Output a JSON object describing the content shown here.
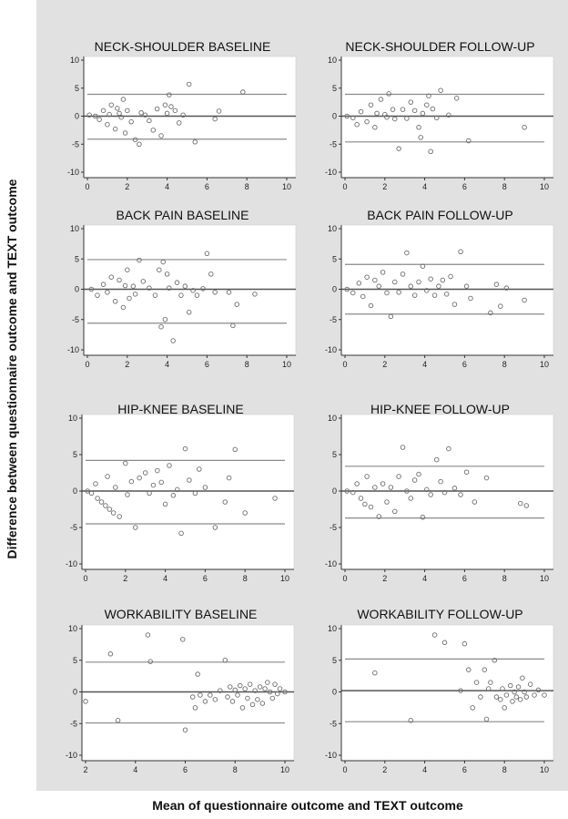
{
  "figure": {
    "ylabel": "Difference between questionnaire outcome and TEXT outcome",
    "xlabel": "Mean of questionnaire outcome and TEXT outcome"
  },
  "chart_data": [
    {
      "type": "scatter",
      "title": "NECK-SHOULDER BASELINE",
      "xlim": [
        0,
        10
      ],
      "ylim": [
        -10,
        10
      ],
      "xticks": [
        "0",
        "2",
        "4",
        "6",
        "8",
        "10"
      ],
      "yticks": [
        "10",
        "5",
        "0",
        "-5",
        "-10"
      ],
      "grid": false,
      "reference_lines": {
        "mean": 0,
        "upper_limit": 3.9,
        "lower_limit": -4.1
      },
      "points": [
        [
          0.1,
          0.2
        ],
        [
          0.4,
          0
        ],
        [
          0.6,
          -0.6
        ],
        [
          0.8,
          1
        ],
        [
          1,
          -1.5
        ],
        [
          1.1,
          0.3
        ],
        [
          1.2,
          2
        ],
        [
          1.4,
          -2.3
        ],
        [
          1.5,
          1.4
        ],
        [
          1.6,
          0.5
        ],
        [
          1.7,
          -0.2
        ],
        [
          1.8,
          3
        ],
        [
          1.9,
          -3
        ],
        [
          2,
          1
        ],
        [
          2.2,
          -1
        ],
        [
          2.4,
          -4.2
        ],
        [
          2.6,
          -5
        ],
        [
          2.7,
          0.6
        ],
        [
          2.9,
          0.2
        ],
        [
          3.1,
          -0.8
        ],
        [
          3.3,
          -2.5
        ],
        [
          3.5,
          1.3
        ],
        [
          3.7,
          -3.5
        ],
        [
          3.9,
          2
        ],
        [
          4,
          0.5
        ],
        [
          4.1,
          3.8
        ],
        [
          4.2,
          1.7
        ],
        [
          4.4,
          1
        ],
        [
          4.6,
          -1.2
        ],
        [
          4.8,
          0.2
        ],
        [
          5.1,
          5.7
        ],
        [
          5.4,
          -4.6
        ],
        [
          6.4,
          -0.5
        ],
        [
          6.6,
          0.9
        ],
        [
          7.8,
          4.3
        ]
      ]
    },
    {
      "type": "scatter",
      "title": "NECK-SHOULDER FOLLOW-UP",
      "xlim": [
        0,
        10
      ],
      "ylim": [
        -10,
        10
      ],
      "xticks": [
        "0",
        "2",
        "4",
        "6",
        "8",
        "10"
      ],
      "yticks": [
        "10",
        "5",
        "0",
        "-5",
        "-10"
      ],
      "grid": false,
      "reference_lines": {
        "mean": 0,
        "upper_limit": 3.9,
        "lower_limit": -4.6
      },
      "points": [
        [
          0.1,
          0
        ],
        [
          0.4,
          -0.3
        ],
        [
          0.6,
          -1.5
        ],
        [
          0.8,
          0.8
        ],
        [
          1.1,
          -1
        ],
        [
          1.3,
          2
        ],
        [
          1.5,
          -2
        ],
        [
          1.6,
          0.5
        ],
        [
          1.8,
          3
        ],
        [
          2,
          0.3
        ],
        [
          2.1,
          -0.2
        ],
        [
          2.2,
          4
        ],
        [
          2.4,
          1.2
        ],
        [
          2.5,
          -0.5
        ],
        [
          2.7,
          -5.8
        ],
        [
          2.9,
          1.2
        ],
        [
          3.1,
          -0.4
        ],
        [
          3.3,
          2.5
        ],
        [
          3.5,
          1
        ],
        [
          3.7,
          -2
        ],
        [
          3.8,
          -3.8
        ],
        [
          3.9,
          0.5
        ],
        [
          4.1,
          2
        ],
        [
          4.2,
          3.6
        ],
        [
          4.3,
          -6.3
        ],
        [
          4.4,
          1.3
        ],
        [
          4.6,
          -0.3
        ],
        [
          4.8,
          4.6
        ],
        [
          5.2,
          0.2
        ],
        [
          5.6,
          3.2
        ],
        [
          6.2,
          -4.4
        ],
        [
          9,
          -2
        ]
      ]
    },
    {
      "type": "scatter",
      "title": "BACK PAIN BASELINE",
      "xlim": [
        0,
        10
      ],
      "ylim": [
        -10,
        10
      ],
      "xticks": [
        "0",
        "2",
        "4",
        "6",
        "8",
        "10"
      ],
      "yticks": [
        "10",
        "5",
        "0",
        "-5",
        "-10"
      ],
      "grid": false,
      "reference_lines": {
        "mean": 0,
        "upper_limit": 4.9,
        "lower_limit": -5.6
      },
      "points": [
        [
          0.2,
          0
        ],
        [
          0.5,
          -1
        ],
        [
          0.8,
          0.8
        ],
        [
          1,
          -0.5
        ],
        [
          1.2,
          2
        ],
        [
          1.4,
          -2
        ],
        [
          1.6,
          1.5
        ],
        [
          1.8,
          -3
        ],
        [
          1.9,
          0.6
        ],
        [
          2,
          3.2
        ],
        [
          2.1,
          -1.5
        ],
        [
          2.3,
          0.5
        ],
        [
          2.4,
          -0.8
        ],
        [
          2.6,
          4.8
        ],
        [
          2.8,
          1.3
        ],
        [
          3.1,
          0.2
        ],
        [
          3.4,
          -1
        ],
        [
          3.6,
          3.2
        ],
        [
          3.7,
          -6.2
        ],
        [
          3.8,
          4.5
        ],
        [
          3.9,
          -5
        ],
        [
          4,
          2.5
        ],
        [
          4.1,
          0.2
        ],
        [
          4.3,
          -8.5
        ],
        [
          4.5,
          1.1
        ],
        [
          4.7,
          -1
        ],
        [
          4.9,
          0.5
        ],
        [
          5.1,
          -3.8
        ],
        [
          5.3,
          -0.2
        ],
        [
          5.5,
          -1
        ],
        [
          5.8,
          0.1
        ],
        [
          6,
          5.9
        ],
        [
          6.2,
          2.5
        ],
        [
          6.4,
          -0.5
        ],
        [
          7.1,
          -0.5
        ],
        [
          7.3,
          -6
        ],
        [
          7.5,
          -2.5
        ],
        [
          8.4,
          -0.8
        ]
      ]
    },
    {
      "type": "scatter",
      "title": "BACK PAIN FOLLOW-UP",
      "xlim": [
        0,
        10
      ],
      "ylim": [
        -10,
        10
      ],
      "xticks": [
        "0",
        "2",
        "4",
        "6",
        "8",
        "10"
      ],
      "yticks": [
        "10",
        "5",
        "0",
        "-5",
        "-10"
      ],
      "grid": false,
      "reference_lines": {
        "mean": 0,
        "upper_limit": 4.1,
        "lower_limit": -4.1
      },
      "points": [
        [
          0.1,
          0
        ],
        [
          0.4,
          -0.6
        ],
        [
          0.7,
          1
        ],
        [
          0.9,
          -1.2
        ],
        [
          1.1,
          2
        ],
        [
          1.3,
          -2.7
        ],
        [
          1.5,
          1.5
        ],
        [
          1.7,
          0.5
        ],
        [
          1.9,
          2.8
        ],
        [
          2.1,
          -0.6
        ],
        [
          2.3,
          -4.5
        ],
        [
          2.5,
          1.2
        ],
        [
          2.7,
          -0.5
        ],
        [
          2.9,
          2.5
        ],
        [
          3.1,
          6
        ],
        [
          3.3,
          0.5
        ],
        [
          3.5,
          -1
        ],
        [
          3.7,
          1.2
        ],
        [
          3.9,
          3.8
        ],
        [
          4.1,
          -0.2
        ],
        [
          4.3,
          1.7
        ],
        [
          4.5,
          -1
        ],
        [
          4.7,
          0.5
        ],
        [
          4.9,
          1.5
        ],
        [
          5.1,
          -0.8
        ],
        [
          5.3,
          2.1
        ],
        [
          5.5,
          -2.5
        ],
        [
          5.8,
          6.2
        ],
        [
          6.1,
          0.5
        ],
        [
          6.3,
          -1.5
        ],
        [
          7.3,
          -3.9
        ],
        [
          7.6,
          0.8
        ],
        [
          7.8,
          -2.8
        ],
        [
          8.1,
          0.2
        ],
        [
          9,
          -1.8
        ]
      ]
    },
    {
      "type": "scatter",
      "title": "HIP-KNEE BASELINE",
      "xlim": [
        0,
        10
      ],
      "ylim": [
        -10,
        10
      ],
      "xticks": [
        "0",
        "2",
        "4",
        "6",
        "8",
        "10"
      ],
      "yticks": [
        "10",
        "5",
        "0",
        "-5",
        "-10"
      ],
      "grid": false,
      "reference_lines": {
        "mean": 0,
        "upper_limit": 4.2,
        "lower_limit": -4.5
      },
      "points": [
        [
          0.1,
          0
        ],
        [
          0.3,
          -0.3
        ],
        [
          0.5,
          1
        ],
        [
          0.6,
          -1
        ],
        [
          0.8,
          -1.5
        ],
        [
          1,
          -2
        ],
        [
          1.1,
          2
        ],
        [
          1.2,
          -2.5
        ],
        [
          1.4,
          -3
        ],
        [
          1.5,
          0.5
        ],
        [
          1.7,
          -3.5
        ],
        [
          2,
          3.8
        ],
        [
          2.1,
          -0.5
        ],
        [
          2.3,
          1.3
        ],
        [
          2.5,
          -5
        ],
        [
          2.7,
          1.8
        ],
        [
          3,
          2.5
        ],
        [
          3.2,
          -0.3
        ],
        [
          3.4,
          0.8
        ],
        [
          3.6,
          2.8
        ],
        [
          3.8,
          1.2
        ],
        [
          4,
          -1.8
        ],
        [
          4.2,
          3.5
        ],
        [
          4.4,
          -0.6
        ],
        [
          4.6,
          0.2
        ],
        [
          4.8,
          -5.8
        ],
        [
          5,
          5.8
        ],
        [
          5.2,
          1.5
        ],
        [
          5.5,
          -0.3
        ],
        [
          5.7,
          3
        ],
        [
          6,
          0.5
        ],
        [
          6.5,
          -5
        ],
        [
          7,
          -1.5
        ],
        [
          7.2,
          1.8
        ],
        [
          7.5,
          5.7
        ],
        [
          8,
          -3
        ],
        [
          9.5,
          -1
        ]
      ]
    },
    {
      "type": "scatter",
      "title": "HIP-KNEE FOLLOW-UP",
      "xlim": [
        0,
        10
      ],
      "ylim": [
        -10,
        10
      ],
      "xticks": [
        "0",
        "2",
        "4",
        "6",
        "8",
        "10"
      ],
      "yticks": [
        "10",
        "5",
        "0",
        "-5",
        "-10"
      ],
      "grid": false,
      "reference_lines": {
        "mean": 0,
        "upper_limit": 3.4,
        "lower_limit": -3.7
      },
      "points": [
        [
          0.1,
          0
        ],
        [
          0.4,
          -0.2
        ],
        [
          0.6,
          1
        ],
        [
          0.8,
          -1
        ],
        [
          1,
          -1.8
        ],
        [
          1.1,
          2
        ],
        [
          1.3,
          -2.2
        ],
        [
          1.5,
          0.5
        ],
        [
          1.7,
          -3.5
        ],
        [
          1.9,
          1
        ],
        [
          2.1,
          -1.5
        ],
        [
          2.3,
          0.5
        ],
        [
          2.5,
          -2.8
        ],
        [
          2.7,
          2
        ],
        [
          2.9,
          6
        ],
        [
          3.1,
          0
        ],
        [
          3.3,
          -1
        ],
        [
          3.5,
          1.5
        ],
        [
          3.7,
          2.3
        ],
        [
          3.9,
          -3.6
        ],
        [
          4.1,
          0.2
        ],
        [
          4.3,
          -0.5
        ],
        [
          4.6,
          4.3
        ],
        [
          4.8,
          1.3
        ],
        [
          5,
          -0.2
        ],
        [
          5.2,
          5.8
        ],
        [
          5.5,
          0.4
        ],
        [
          5.8,
          -0.5
        ],
        [
          6.1,
          2.6
        ],
        [
          6.5,
          -1.5
        ],
        [
          7.1,
          1.8
        ],
        [
          8.8,
          -1.7
        ],
        [
          9.1,
          -2
        ]
      ]
    },
    {
      "type": "scatter",
      "title": "WORKABILITY BASELINE",
      "xlim": [
        2,
        10
      ],
      "ylim": [
        -10,
        10
      ],
      "xticks": [
        "2",
        "4",
        "6",
        "8",
        "10"
      ],
      "yticks": [
        "10",
        "5",
        "0",
        "-5",
        "-10"
      ],
      "grid": false,
      "reference_lines": {
        "mean": 0,
        "upper_limit": 4.7,
        "lower_limit": -4.9
      },
      "points": [
        [
          2,
          -1.5
        ],
        [
          3,
          6
        ],
        [
          3.3,
          -4.5
        ],
        [
          4.5,
          9
        ],
        [
          4.6,
          4.8
        ],
        [
          5.9,
          8.3
        ],
        [
          6,
          -6
        ],
        [
          6.3,
          -0.8
        ],
        [
          6.4,
          -2.5
        ],
        [
          6.5,
          2.8
        ],
        [
          6.6,
          -0.5
        ],
        [
          6.8,
          -1.5
        ],
        [
          7,
          -0.5
        ],
        [
          7.2,
          -1.2
        ],
        [
          7.4,
          0.2
        ],
        [
          7.6,
          5
        ],
        [
          7.7,
          -0.8
        ],
        [
          7.8,
          0.8
        ],
        [
          7.9,
          -1.5
        ],
        [
          8,
          0.3
        ],
        [
          8.1,
          -0.5
        ],
        [
          8.2,
          1
        ],
        [
          8.3,
          -2.5
        ],
        [
          8.4,
          0.5
        ],
        [
          8.5,
          -1
        ],
        [
          8.6,
          1.2
        ],
        [
          8.7,
          -2
        ],
        [
          8.8,
          0.2
        ],
        [
          8.9,
          -1.2
        ],
        [
          9,
          0.8
        ],
        [
          9.1,
          -1.8
        ],
        [
          9.2,
          0.5
        ],
        [
          9.3,
          1.5
        ],
        [
          9.4,
          0
        ],
        [
          9.5,
          -1
        ],
        [
          9.6,
          1.2
        ],
        [
          9.7,
          -0.3
        ],
        [
          9.8,
          0.5
        ],
        [
          10,
          0
        ]
      ]
    },
    {
      "type": "scatter",
      "title": "WORKABILITY FOLLOW-UP",
      "xlim": [
        0,
        10
      ],
      "ylim": [
        -10,
        10
      ],
      "xticks": [
        "0",
        "2",
        "4",
        "6",
        "8",
        "10"
      ],
      "yticks": [
        "10",
        "5",
        "0",
        "-5",
        "-10"
      ],
      "grid": false,
      "reference_lines": {
        "mean": 0.2,
        "upper_limit": 5.2,
        "lower_limit": -4.7
      },
      "points": [
        [
          1.5,
          3
        ],
        [
          3.3,
          -4.5
        ],
        [
          4.5,
          9
        ],
        [
          5,
          7.8
        ],
        [
          5.8,
          0.2
        ],
        [
          6,
          7.6
        ],
        [
          6.2,
          3.5
        ],
        [
          6.4,
          -2.5
        ],
        [
          6.6,
          1.5
        ],
        [
          6.8,
          -0.8
        ],
        [
          7,
          3.5
        ],
        [
          7.1,
          -4.3
        ],
        [
          7.2,
          0.5
        ],
        [
          7.3,
          1.5
        ],
        [
          7.5,
          5
        ],
        [
          7.6,
          -0.8
        ],
        [
          7.8,
          -1.2
        ],
        [
          7.9,
          0.5
        ],
        [
          8,
          -2.5
        ],
        [
          8.1,
          -0.5
        ],
        [
          8.3,
          1
        ],
        [
          8.4,
          -1.5
        ],
        [
          8.5,
          0
        ],
        [
          8.6,
          -0.8
        ],
        [
          8.7,
          0.8
        ],
        [
          8.8,
          -1.2
        ],
        [
          8.9,
          2.2
        ],
        [
          9,
          0
        ],
        [
          9.1,
          -0.8
        ],
        [
          9.3,
          1.2
        ],
        [
          9.5,
          -0.5
        ],
        [
          9.7,
          0.3
        ],
        [
          10,
          -0.5
        ]
      ]
    }
  ]
}
